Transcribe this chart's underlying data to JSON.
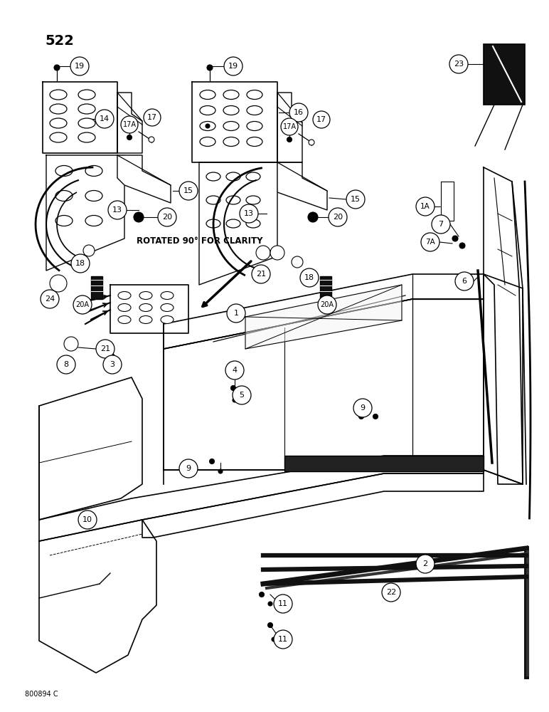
{
  "title_number": "522",
  "footer_text": "800894 C",
  "background_color": "#ffffff",
  "line_color": "#000000",
  "rotated_note": "ROTATED 90° FOR CLARITY"
}
